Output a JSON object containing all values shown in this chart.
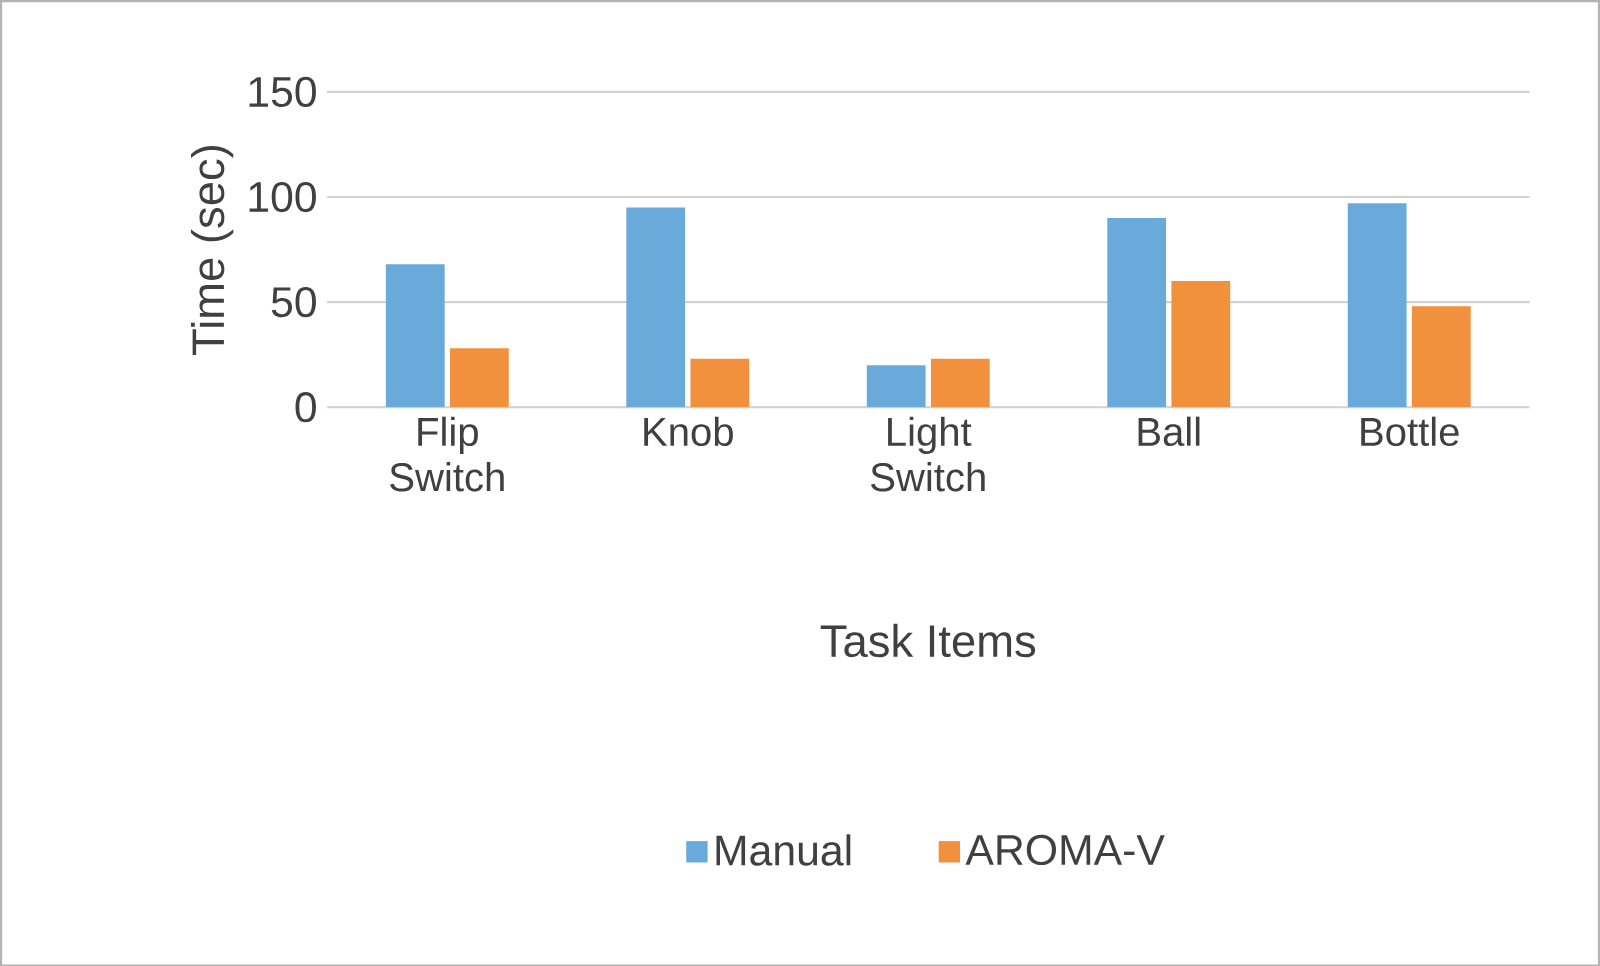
{
  "chart_data": {
    "type": "bar",
    "xlabel": "Task Items",
    "ylabel": "Time (sec)",
    "categories": [
      "Flip Switch",
      "Knob",
      "Light Switch",
      "Ball",
      "Bottle"
    ],
    "series": [
      {
        "name": "Manual",
        "color": "#6aaadb",
        "values": [
          68,
          95,
          20,
          90,
          97
        ]
      },
      {
        "name": "AROMA-V",
        "color": "#f2913d",
        "values": [
          28,
          23,
          23,
          60,
          48
        ]
      }
    ],
    "ylim": [
      0,
      150
    ],
    "yticks": [
      0,
      50,
      100,
      150
    ],
    "grid": "y",
    "legend": "bottom"
  }
}
